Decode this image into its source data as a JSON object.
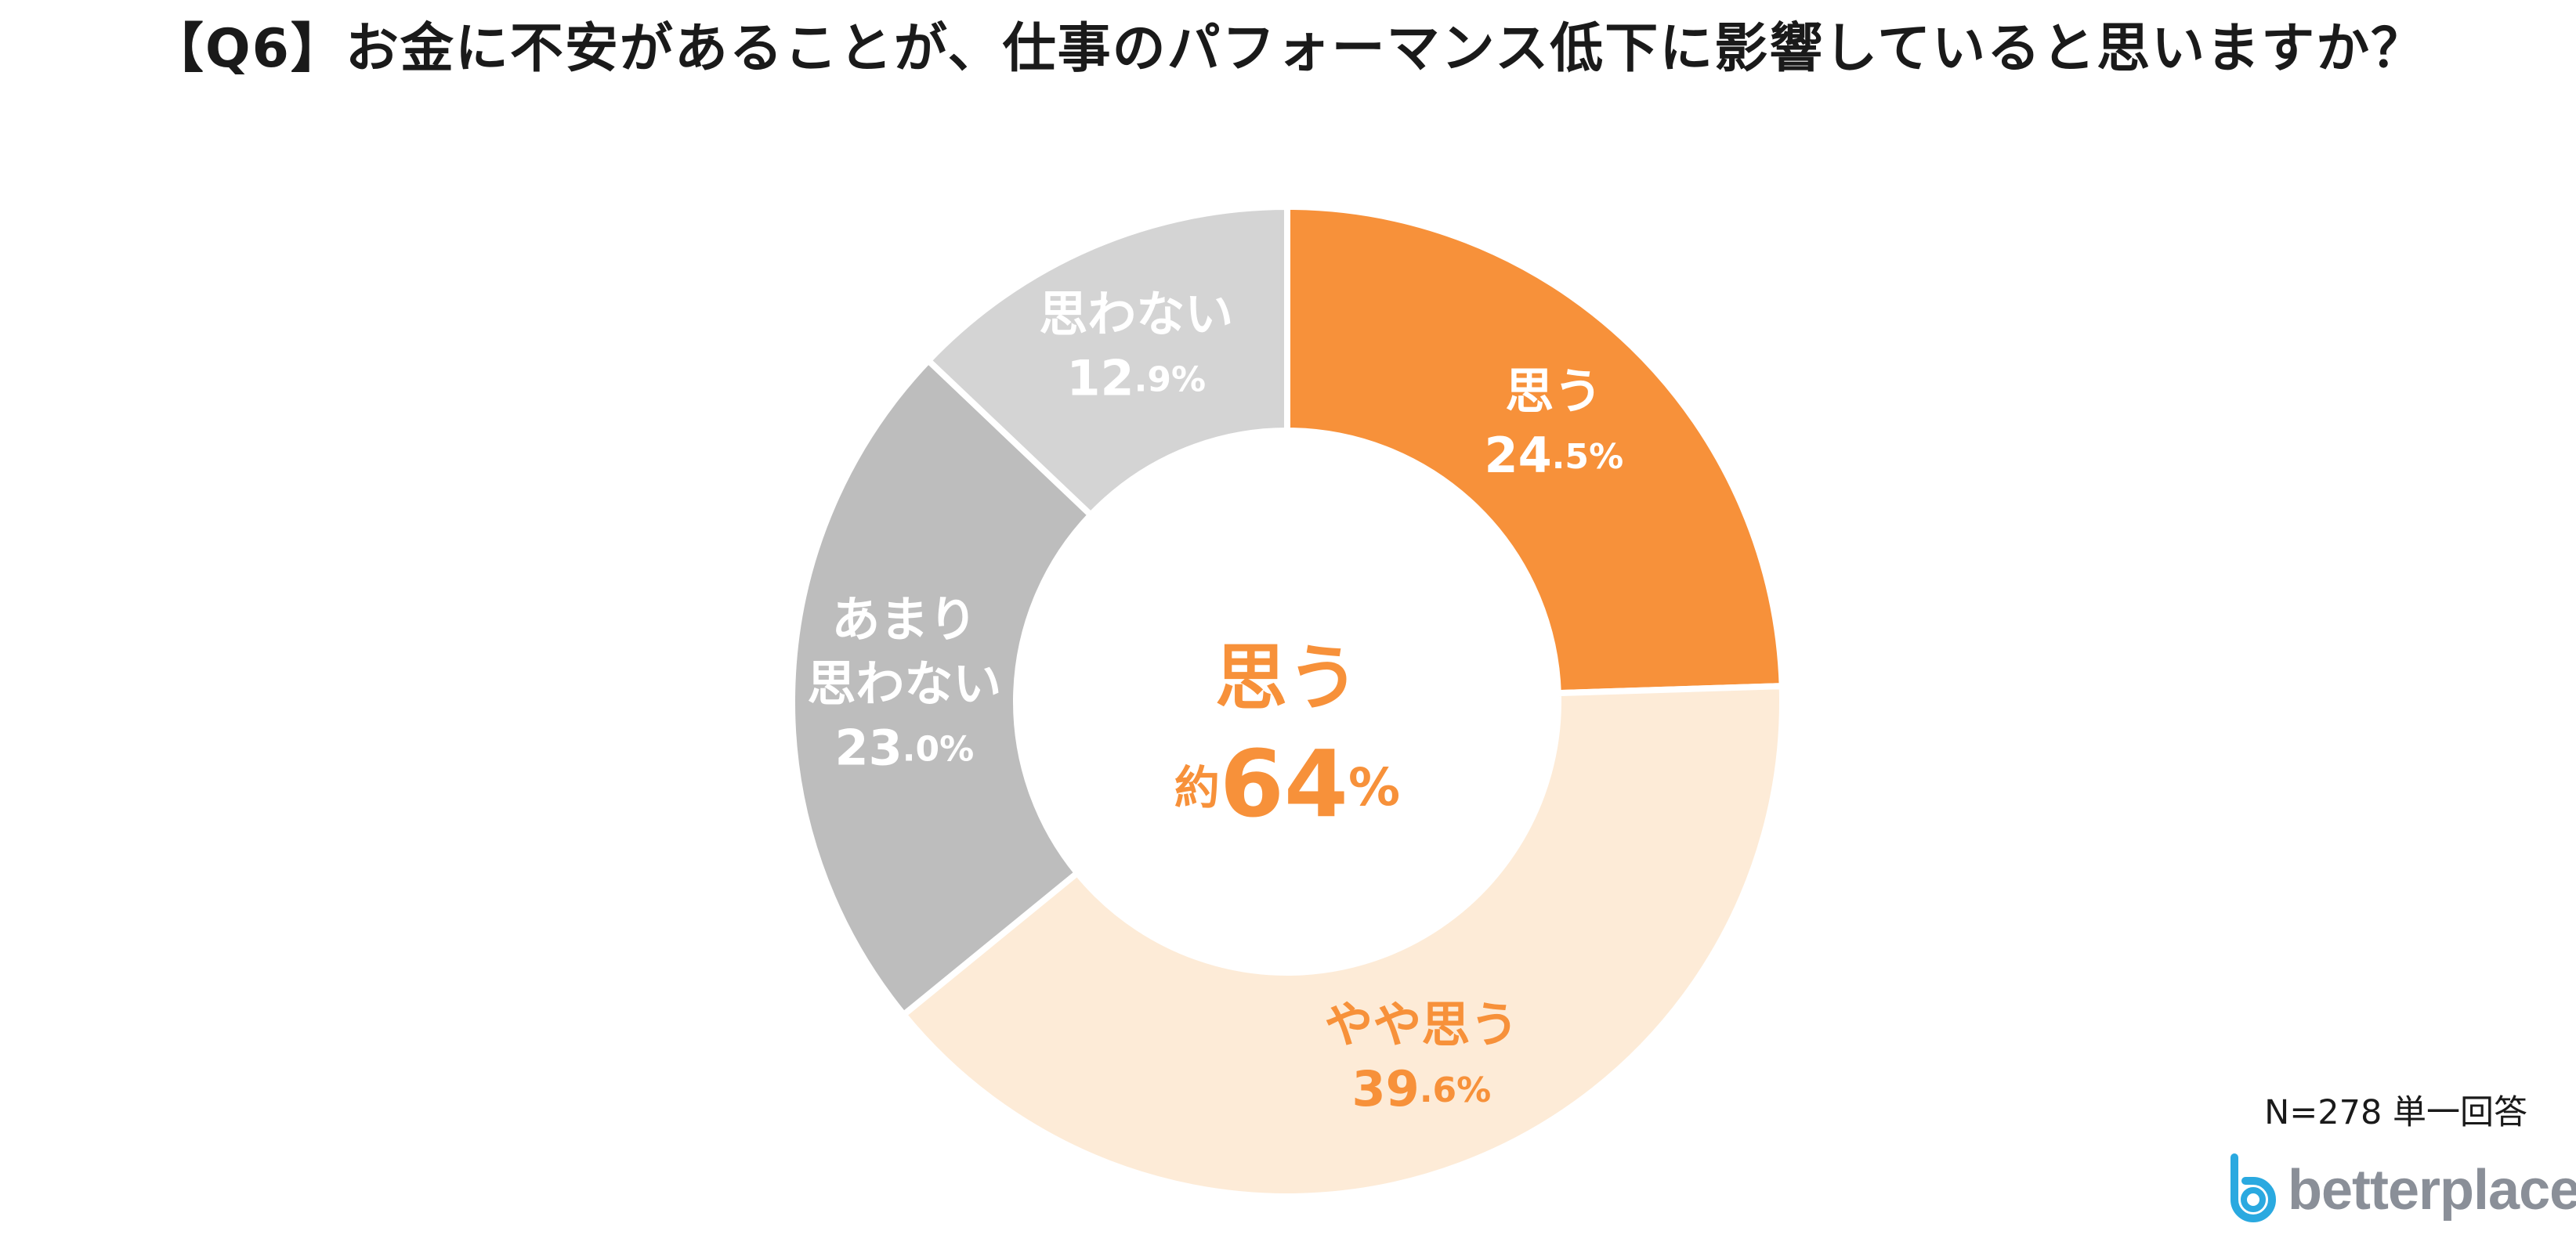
{
  "title": "【Q6】お金に不安があることが、仕事のパフォーマンス低下に影響していると思いますか？",
  "chart_data": {
    "type": "donut",
    "title": "【Q6】お金に不安があることが、仕事のパフォーマンス低下に影響していると思いますか？",
    "categories": [
      "思う",
      "やや思う",
      "あまり思わない",
      "思わない"
    ],
    "values": [
      24.5,
      39.6,
      23.0,
      12.9
    ],
    "unit": "%",
    "colors": [
      "#f7913a",
      "#fdebd7",
      "#bdbdbd",
      "#d4d4d4"
    ],
    "label_colors": [
      "#ffffff",
      "#f7913a",
      "#ffffff",
      "#ffffff"
    ],
    "labels": [
      {
        "lines": [
          "思う"
        ],
        "int": "24",
        "dec": ".5",
        "pct": "%"
      },
      {
        "lines": [
          "やや思う"
        ],
        "int": "39",
        "dec": ".6",
        "pct": "%"
      },
      {
        "lines": [
          "あまり",
          "思わない"
        ],
        "int": "23",
        "dec": ".0",
        "pct": "%"
      },
      {
        "lines": [
          "思わない"
        ],
        "int": "12",
        "dec": ".9",
        "pct": "%"
      }
    ],
    "center": {
      "label": "思う",
      "prefix": "約",
      "value": "64",
      "unit": "%",
      "color": "#f7913a"
    }
  },
  "footnote": "N=278 単一回答",
  "logo": {
    "text": "betterplace",
    "color": "#8a8f98",
    "mark_color": "#2aa9e0"
  }
}
